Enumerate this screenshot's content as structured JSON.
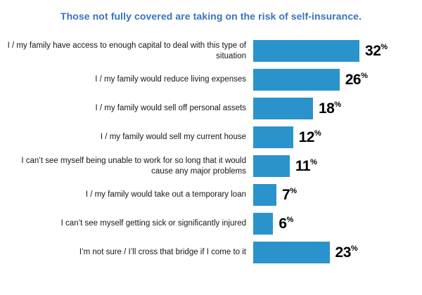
{
  "title": "Those not fully covered are taking on the risk of self-insurance.",
  "chart_data": {
    "type": "bar",
    "orientation": "horizontal",
    "title": "Those not fully covered are taking on the risk of self-insurance.",
    "categories": [
      "I / my family have access to enough capital to deal with this type of situation",
      "I / my family would reduce living expenses",
      "I / my family would sell off personal assets",
      "I / my family would sell my current house",
      "I can’t see myself being unable to work for so long that it would cause any major problems",
      "I / my family would take out a temporary loan",
      "I can’t see myself getting sick or significantly injured",
      "I’m not sure / I’ll cross that bridge if I come to it"
    ],
    "values": [
      32,
      26,
      18,
      12,
      11,
      7,
      6,
      23
    ],
    "value_suffix": "%",
    "xlim": [
      0,
      35
    ],
    "grid": false,
    "legend": false,
    "bar_color": "#2B93CC",
    "title_color": "#3B72B8",
    "label_color": "#161616",
    "value_color": "#000000"
  },
  "percent_sign": "%"
}
